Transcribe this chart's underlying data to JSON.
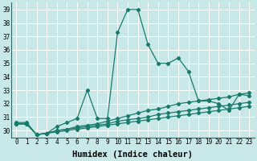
{
  "xlabel": "Humidex (Indice chaleur)",
  "bg_color": "#c8e8e8",
  "grid_color": "#ffffff",
  "line_color": "#1a7a6a",
  "xlim": [
    -0.5,
    23.5
  ],
  "ylim": [
    29.5,
    39.5
  ],
  "xtick_labels": [
    "0",
    "1",
    "2",
    "3",
    "4",
    "5",
    "6",
    "7",
    "8",
    "9",
    "10",
    "11",
    "12",
    "13",
    "14",
    "15",
    "16",
    "17",
    "18",
    "19",
    "20",
    "21",
    "22",
    "23"
  ],
  "yticks": [
    30,
    31,
    32,
    33,
    34,
    35,
    36,
    37,
    38,
    39
  ],
  "series": [
    [
      30.6,
      30.6,
      29.7,
      29.8,
      30.3,
      30.6,
      30.9,
      33.0,
      30.9,
      30.9,
      37.3,
      39.0,
      39.0,
      36.4,
      35.0,
      35.0,
      35.4,
      34.4,
      32.2,
      32.2,
      32.0,
      31.5,
      32.7,
      32.6
    ],
    [
      30.5,
      30.5,
      29.7,
      29.8,
      30.0,
      30.1,
      30.3,
      30.4,
      30.5,
      30.7,
      30.9,
      31.1,
      31.3,
      31.5,
      31.6,
      31.8,
      32.0,
      32.1,
      32.2,
      32.3,
      32.4,
      32.5,
      32.7,
      32.8
    ],
    [
      30.5,
      30.5,
      29.7,
      29.8,
      30.0,
      30.1,
      30.2,
      30.3,
      30.4,
      30.5,
      30.7,
      30.8,
      30.9,
      31.0,
      31.2,
      31.3,
      31.4,
      31.5,
      31.6,
      31.7,
      31.8,
      31.9,
      32.0,
      32.1
    ],
    [
      30.5,
      30.5,
      29.7,
      29.8,
      29.9,
      30.0,
      30.1,
      30.2,
      30.3,
      30.4,
      30.5,
      30.6,
      30.7,
      30.8,
      30.9,
      31.0,
      31.1,
      31.2,
      31.3,
      31.4,
      31.5,
      31.6,
      31.7,
      31.8
    ]
  ],
  "marker": "D",
  "markersize": 2.2,
  "linewidth": 0.9,
  "tick_fontsize": 5.5,
  "xlabel_fontsize": 7.5
}
